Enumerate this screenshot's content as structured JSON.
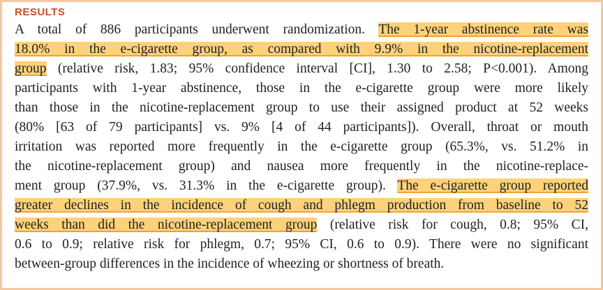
{
  "heading": "RESULTS",
  "paragraph": {
    "lines": [
      {
        "segments": [
          {
            "text": "A total of 886 participants underwent randomization. ",
            "highlight": false
          },
          {
            "text": "The 1-year abstinence rate was",
            "highlight": true
          }
        ]
      },
      {
        "segments": [
          {
            "text": "18.0% in the e-cigarette group, as compared with 9.9% in the nicotine-replacement",
            "highlight": true
          }
        ]
      },
      {
        "segments": [
          {
            "text": "group",
            "highlight": true
          },
          {
            "text": " (relative risk, 1.83; 95% confidence interval [CI], 1.30 to 2.58; P<0.001). Among",
            "highlight": false
          }
        ]
      },
      {
        "segments": [
          {
            "text": "participants with 1-year abstinence, those in the e-cigarette group were more likely",
            "highlight": false
          }
        ]
      },
      {
        "segments": [
          {
            "text": "than those in the nicotine-replacement group to use their assigned product at 52 weeks",
            "highlight": false
          }
        ]
      },
      {
        "segments": [
          {
            "text": "(80% [63 of 79 participants] vs. 9% [4 of 44 participants]). Overall, throat or mouth",
            "highlight": false
          }
        ]
      },
      {
        "segments": [
          {
            "text": "irritation was reported more frequently in the e-cigarette group (65.3%, vs. 51.2% in",
            "highlight": false
          }
        ]
      },
      {
        "segments": [
          {
            "text": "the nicotine-replacement group) and nausea more frequently in the nicotine-replace-",
            "highlight": false
          }
        ]
      },
      {
        "segments": [
          {
            "text": "ment group (37.9%, vs. 31.3% in the e-cigarette group). ",
            "highlight": false
          },
          {
            "text": "The e-cigarette group reported",
            "highlight": true
          }
        ]
      },
      {
        "segments": [
          {
            "text": "greater declines in the incidence of cough and phlegm production from baseline to 52",
            "highlight": true
          }
        ]
      },
      {
        "segments": [
          {
            "text": "weeks than did the nicotine-replacement group",
            "highlight": true
          },
          {
            "text": " (relative risk for cough, 0.8; 95% CI,",
            "highlight": false
          }
        ]
      },
      {
        "segments": [
          {
            "text": "0.6 to 0.9; relative risk for phlegm, 0.7; 95% CI, 0.6 to 0.9). There were no significant",
            "highlight": false
          }
        ]
      },
      {
        "segments": [
          {
            "text": "between-group differences in the incidence of wheezing or shortness of breath.",
            "highlight": false
          }
        ]
      }
    ]
  }
}
